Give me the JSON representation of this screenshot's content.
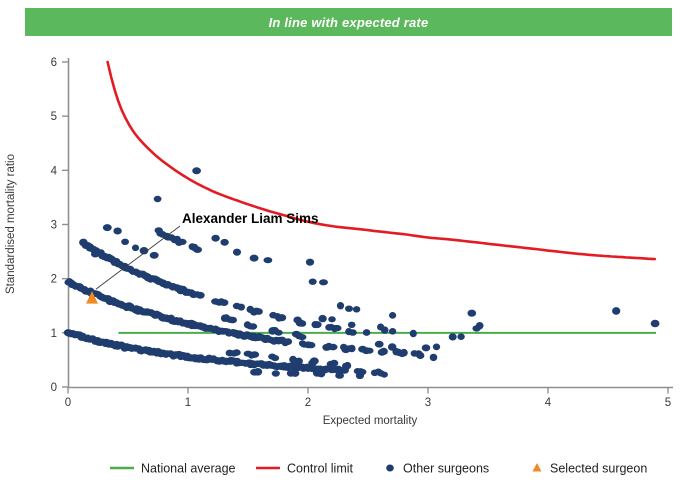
{
  "header": {
    "label": "In line with expected rate",
    "bg_color": "#5cb85c",
    "text_color": "#ffffff"
  },
  "chart": {
    "xlabel": "Expected mortality",
    "ylabel": "Standardised mortality ratio",
    "x_ticks": [
      0,
      1,
      2,
      3,
      4,
      5
    ],
    "y_ticks": [
      0,
      1,
      2,
      3,
      4,
      5,
      6
    ],
    "xlim": [
      0,
      5
    ],
    "ylim": [
      0,
      6
    ],
    "grid": false,
    "annotation": {
      "label": "Alexander Liam Sims",
      "points_to": [
        0.2,
        1.64
      ]
    }
  },
  "chart_data": {
    "type": "scatter",
    "title": "In line with expected rate",
    "xlabel": "Expected mortality",
    "ylabel": "Standardised mortality ratio",
    "xlim": [
      0,
      5
    ],
    "ylim": [
      0,
      6
    ],
    "legend_position": "bottom",
    "series": [
      {
        "name": "National average",
        "type": "line",
        "color": "#4bad4b",
        "y": 1.0,
        "x_range": [
          0.42,
          4.9
        ]
      },
      {
        "name": "Control limit",
        "type": "curve",
        "color": "#e31b23",
        "points": [
          [
            0.33,
            6.0
          ],
          [
            0.38,
            5.55
          ],
          [
            0.45,
            5.1
          ],
          [
            0.55,
            4.7
          ],
          [
            0.68,
            4.38
          ],
          [
            0.8,
            4.15
          ],
          [
            1.0,
            3.85
          ],
          [
            1.2,
            3.62
          ],
          [
            1.4,
            3.45
          ],
          [
            1.6,
            3.3
          ],
          [
            1.8,
            3.17
          ],
          [
            2.0,
            3.05
          ],
          [
            2.2,
            2.97
          ],
          [
            2.4,
            2.92
          ],
          [
            2.6,
            2.87
          ],
          [
            2.8,
            2.82
          ],
          [
            3.0,
            2.76
          ],
          [
            3.2,
            2.72
          ],
          [
            3.4,
            2.67
          ],
          [
            3.6,
            2.62
          ],
          [
            3.8,
            2.57
          ],
          [
            4.0,
            2.52
          ],
          [
            4.2,
            2.47
          ],
          [
            4.4,
            2.43
          ],
          [
            4.6,
            2.4
          ],
          [
            4.75,
            2.38
          ],
          [
            4.9,
            2.36
          ]
        ]
      },
      {
        "name": "Other surgeons",
        "type": "scatter",
        "color": "#1f3d6e",
        "bands": [
          {
            "id": "deaths-band-1",
            "x_min": 0.0,
            "x_max": 2.62,
            "dense_to": 2.25,
            "step": 0.014,
            "anchors": [
              [
                0,
                1.0
              ],
              [
                0.2,
                0.875
              ],
              [
                0.4,
                0.775
              ],
              [
                0.6,
                0.69
              ],
              [
                0.8,
                0.62
              ],
              [
                1.0,
                0.56
              ],
              [
                1.2,
                0.505
              ],
              [
                1.4,
                0.46
              ],
              [
                1.6,
                0.42
              ],
              [
                1.8,
                0.385
              ],
              [
                2.0,
                0.35
              ],
              [
                2.2,
                0.32
              ],
              [
                2.45,
                0.285
              ],
              [
                2.62,
                0.265
              ]
            ],
            "run": [
              2,
              4
            ],
            "gap": [
              0.05,
              0.11
            ]
          },
          {
            "id": "deaths-band-1-sub",
            "x_min": 1.55,
            "x_max": 2.72,
            "dense_to": 1.55,
            "step": 0.03,
            "anchors": [
              [
                1.55,
                0.29
              ],
              [
                1.8,
                0.26
              ],
              [
                2.1,
                0.24
              ],
              [
                2.4,
                0.22
              ],
              [
                2.72,
                0.205
              ]
            ],
            "run": [
              1,
              2
            ],
            "gap": [
              0.1,
              0.18
            ]
          },
          {
            "id": "deaths-band-1-5",
            "x_min": 1.35,
            "x_max": 2.45,
            "dense_to": 1.35,
            "step": 0.028,
            "anchors": [
              [
                1.35,
                0.64
              ],
              [
                1.6,
                0.57
              ],
              [
                1.85,
                0.5
              ],
              [
                2.1,
                0.45
              ],
              [
                2.3,
                0.415
              ],
              [
                2.45,
                0.39
              ]
            ],
            "run": [
              2,
              3
            ],
            "gap": [
              0.07,
              0.13
            ]
          },
          {
            "id": "deaths-band-2",
            "x_min": 0.0,
            "x_max": 3.0,
            "dense_to": 1.75,
            "step": 0.014,
            "anchors": [
              [
                0,
                1.95
              ],
              [
                0.2,
                1.74
              ],
              [
                0.4,
                1.56
              ],
              [
                0.6,
                1.41
              ],
              [
                0.8,
                1.285
              ],
              [
                1.0,
                1.17
              ],
              [
                1.2,
                1.07
              ],
              [
                1.4,
                0.985
              ],
              [
                1.6,
                0.91
              ],
              [
                1.8,
                0.845
              ],
              [
                2.0,
                0.79
              ],
              [
                2.2,
                0.74
              ],
              [
                2.4,
                0.695
              ],
              [
                2.6,
                0.655
              ],
              [
                2.8,
                0.62
              ],
              [
                3.0,
                0.59
              ]
            ],
            "run": [
              2,
              4
            ],
            "gap": [
              0.06,
              0.12
            ]
          },
          {
            "id": "deaths-band-2-5",
            "x_min": 1.3,
            "x_max": 2.1,
            "dense_to": 1.3,
            "step": 0.026,
            "anchors": [
              [
                1.3,
                1.27
              ],
              [
                1.5,
                1.14
              ],
              [
                1.7,
                1.04
              ],
              [
                1.9,
                0.96
              ],
              [
                2.1,
                0.89
              ]
            ],
            "run": [
              2,
              3
            ],
            "gap": [
              0.08,
              0.14
            ]
          },
          {
            "id": "deaths-band-3",
            "x_min": 0.13,
            "x_max": 2.5,
            "dense_to": 1.05,
            "step": 0.016,
            "anchors": [
              [
                0.13,
                2.66
              ],
              [
                0.3,
                2.42
              ],
              [
                0.5,
                2.19
              ],
              [
                0.7,
                2.0
              ],
              [
                0.9,
                1.83
              ],
              [
                1.1,
                1.68
              ],
              [
                1.3,
                1.55
              ],
              [
                1.5,
                1.43
              ],
              [
                1.7,
                1.32
              ],
              [
                1.9,
                1.22
              ],
              [
                2.1,
                1.13
              ],
              [
                2.3,
                1.05
              ],
              [
                2.5,
                0.98
              ]
            ],
            "run": [
              2,
              4
            ],
            "gap": [
              0.06,
              0.12
            ]
          },
          {
            "id": "deaths-band-4",
            "x_min": 0.75,
            "x_max": 1.16,
            "dense_to": 0.88,
            "step": 0.022,
            "anchors": [
              [
                0.75,
                2.87
              ],
              [
                0.85,
                2.77
              ],
              [
                0.95,
                2.67
              ],
              [
                1.05,
                2.57
              ],
              [
                1.16,
                2.47
              ]
            ],
            "run": [
              3,
              5
            ],
            "gap": [
              0.04,
              0.07
            ]
          }
        ],
        "points": [
          [
            0.17,
            2.62
          ],
          [
            0.23,
            2.44
          ],
          [
            0.33,
            2.96
          ],
          [
            0.41,
            2.88
          ],
          [
            0.48,
            2.68
          ],
          [
            0.56,
            2.59
          ],
          [
            0.63,
            2.5
          ],
          [
            0.72,
            2.42
          ],
          [
            0.74,
            3.45
          ],
          [
            1.07,
            3.97
          ],
          [
            1.23,
            2.74
          ],
          [
            1.3,
            2.68
          ],
          [
            1.41,
            2.47
          ],
          [
            1.55,
            2.4
          ],
          [
            1.66,
            2.35
          ],
          [
            2.02,
            2.31
          ],
          [
            2.04,
            1.96
          ],
          [
            2.13,
            1.92
          ],
          [
            2.12,
            1.27
          ],
          [
            2.2,
            1.24
          ],
          [
            2.27,
            1.49
          ],
          [
            2.34,
            1.44
          ],
          [
            2.41,
            1.44
          ],
          [
            2.37,
            1.13
          ],
          [
            2.59,
            0.77
          ],
          [
            2.6,
            1.09
          ],
          [
            2.64,
            1.07
          ],
          [
            2.7,
            1.31
          ],
          [
            2.71,
            1.05
          ],
          [
            2.7,
            0.74
          ],
          [
            2.88,
            0.99
          ],
          [
            2.99,
            0.73
          ],
          [
            3.04,
            0.55
          ],
          [
            3.07,
            0.72
          ],
          [
            3.21,
            0.92
          ],
          [
            3.28,
            0.92
          ],
          [
            3.36,
            1.36
          ],
          [
            3.4,
            1.08
          ],
          [
            3.43,
            1.12
          ],
          [
            4.57,
            1.41
          ],
          [
            4.89,
            1.15
          ]
        ]
      },
      {
        "name": "Selected surgeon",
        "type": "point",
        "color": "#f08a24",
        "point": [
          0.2,
          1.64
        ],
        "label": "Alexander Liam Sims"
      }
    ]
  },
  "legend": {
    "items": [
      {
        "label": "National average",
        "glyph": "line",
        "color": "#4bad4b"
      },
      {
        "label": "Control limit",
        "glyph": "line",
        "color": "#e31b23"
      },
      {
        "label": "Other surgeons",
        "glyph": "dot",
        "color": "#1f3d6e"
      },
      {
        "label": "Selected surgeon",
        "glyph": "triangle",
        "color": "#f08a24"
      }
    ]
  },
  "colors": {
    "dot_navy": "#1f3d6e",
    "control_red": "#e31b23",
    "average_green": "#4bad4b",
    "selected_orange": "#f08a24",
    "banner_green": "#5cb85c",
    "spine_grey": "#909090",
    "text_grey": "#3a3a3a"
  }
}
